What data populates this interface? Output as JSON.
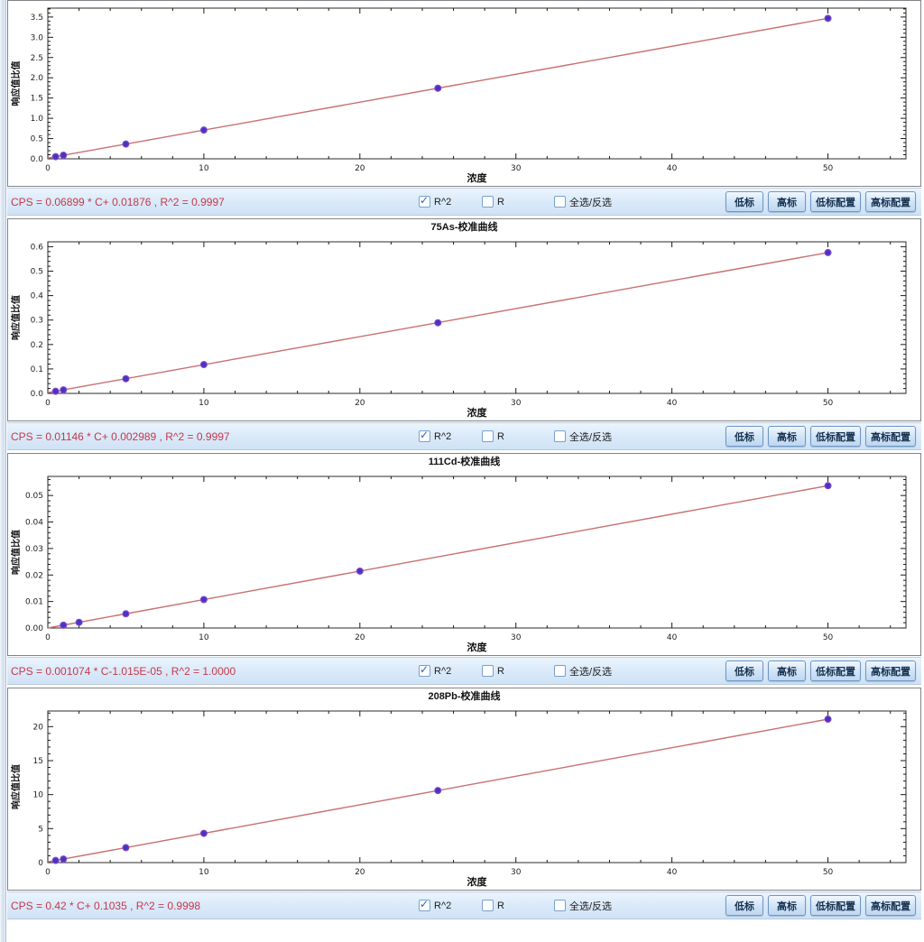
{
  "ui": {
    "checkboxes": [
      {
        "label": "R^2",
        "checked": true
      },
      {
        "label": "R",
        "checked": false
      },
      {
        "label": "全选/反选",
        "checked": false
      }
    ],
    "buttons": [
      "低标",
      "高标",
      "低标配置",
      "高标配置"
    ],
    "formula_color": "#c5394a",
    "bar_bg": "#d9e9f9",
    "button_border": "#6e96c8"
  },
  "chart_data": [
    {
      "type": "scatter",
      "title": "",
      "xlabel": "浓度",
      "ylabel": "响应值比值",
      "formula": "CPS = 0.06899 * C+ 0.01876 , R^2 = 0.9997",
      "slope": 0.06899,
      "intercept": 0.01876,
      "r_squared": 0.9997,
      "x": [
        0.5,
        1,
        5,
        10,
        25,
        50
      ],
      "y": [
        0.053,
        0.088,
        0.364,
        0.709,
        1.743,
        3.468
      ],
      "xlim": [
        0,
        55
      ],
      "ylim": [
        0,
        3.72
      ],
      "xticks": [
        0,
        10,
        20,
        30,
        40,
        50
      ],
      "yticks": [
        0.0,
        0.5,
        1.0,
        1.5,
        2.0,
        2.5,
        3.0,
        3.5
      ],
      "ytick_labels": [
        "0.0",
        "0.5",
        "1.0",
        "1.5",
        "2.0",
        "2.5",
        "3.0",
        "3.5"
      ],
      "line_color": "#c86f6f",
      "point_color": "#4634c6",
      "point_edge": "#8248c8",
      "grid": false,
      "legend": "none"
    },
    {
      "type": "scatter",
      "title": "75As-校准曲线",
      "xlabel": "浓度",
      "ylabel": "响应值比值",
      "formula": "CPS = 0.01146 * C+ 0.002989 , R^2 = 0.9997",
      "slope": 0.01146,
      "intercept": 0.002989,
      "r_squared": 0.9997,
      "x": [
        0.5,
        1,
        5,
        10,
        25,
        50
      ],
      "y": [
        0.0087,
        0.0144,
        0.06,
        0.118,
        0.289,
        0.576
      ],
      "xlim": [
        0,
        55
      ],
      "ylim": [
        0,
        0.62
      ],
      "xticks": [
        0,
        10,
        20,
        30,
        40,
        50
      ],
      "yticks": [
        0.0,
        0.1,
        0.2,
        0.3,
        0.4,
        0.5,
        0.6
      ],
      "ytick_labels": [
        "0.0",
        "0.1",
        "0.2",
        "0.3",
        "0.4",
        "0.5",
        "0.6"
      ],
      "line_color": "#c86f6f",
      "point_color": "#4634c6",
      "point_edge": "#8248c8",
      "grid": false,
      "legend": "none"
    },
    {
      "type": "scatter",
      "title": "111Cd-校准曲线",
      "xlabel": "浓度",
      "ylabel": "响应值比值",
      "formula": "CPS = 0.001074 * C-1.015E-05 , R^2 = 1.0000",
      "slope": 0.001074,
      "intercept": -1.015e-05,
      "r_squared": 1.0,
      "x": [
        1,
        2,
        5,
        10,
        20,
        50
      ],
      "y": [
        0.00106,
        0.00214,
        0.00536,
        0.01073,
        0.02147,
        0.0537
      ],
      "xlim": [
        0,
        55
      ],
      "ylim": [
        0,
        0.0572
      ],
      "xticks": [
        0,
        10,
        20,
        30,
        40,
        50
      ],
      "yticks": [
        0.0,
        0.01,
        0.02,
        0.03,
        0.04,
        0.05
      ],
      "ytick_labels": [
        "0.00",
        "0.01",
        "0.02",
        "0.03",
        "0.04",
        "0.05"
      ],
      "line_color": "#c86f6f",
      "point_color": "#4634c6",
      "point_edge": "#8248c8",
      "grid": false,
      "legend": "none"
    },
    {
      "type": "scatter",
      "title": "208Pb-校准曲线",
      "xlabel": "浓度",
      "ylabel": "响应值比值",
      "formula": "CPS = 0.42 * C+ 0.1035 , R^2 = 0.9998",
      "slope": 0.42,
      "intercept": 0.1035,
      "r_squared": 0.9998,
      "x": [
        0.5,
        1,
        5,
        10,
        25,
        50
      ],
      "y": [
        0.31,
        0.52,
        2.2,
        4.3,
        10.6,
        21.1
      ],
      "xlim": [
        0,
        55
      ],
      "ylim": [
        0,
        22.3
      ],
      "xticks": [
        0,
        10,
        20,
        30,
        40,
        50
      ],
      "yticks": [
        0,
        5,
        10,
        15,
        20
      ],
      "ytick_labels": [
        "0",
        "5",
        "10",
        "15",
        "20"
      ],
      "line_color": "#c86f6f",
      "point_color": "#4634c6",
      "point_edge": "#8248c8",
      "grid": false,
      "legend": "none"
    }
  ]
}
